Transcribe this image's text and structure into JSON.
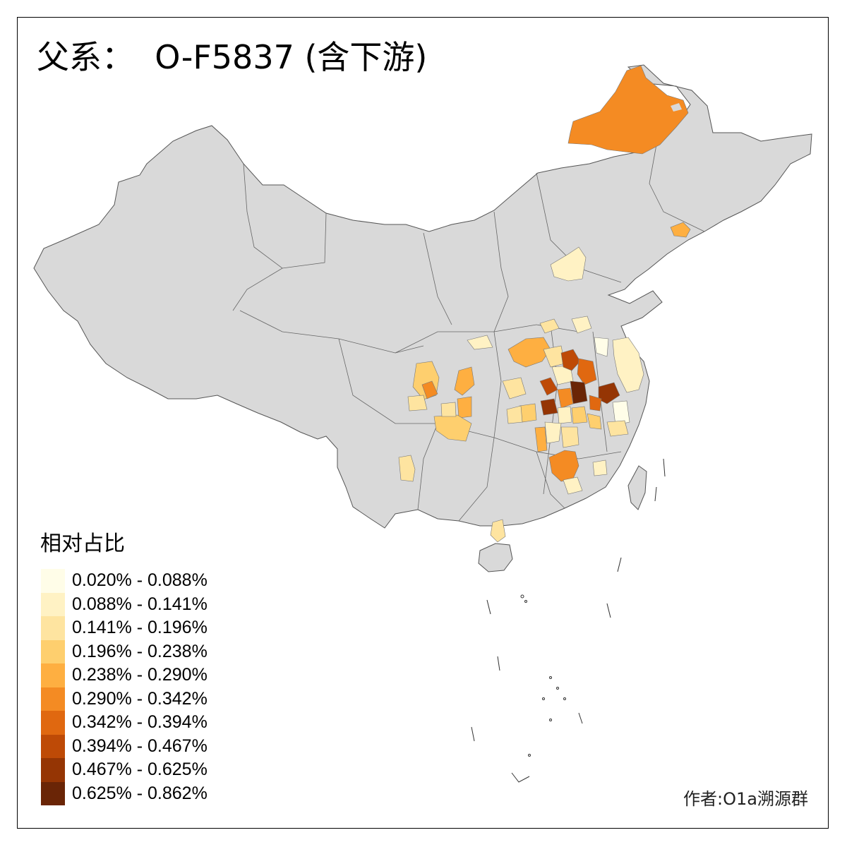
{
  "title": "父系：  O-F5837 (含下游)",
  "legend": {
    "title": "相对占比",
    "items": [
      {
        "label": "0.020% - 0.088%",
        "color": "#fffde8"
      },
      {
        "label": "0.088% - 0.141%",
        "color": "#fff2c4"
      },
      {
        "label": "0.141% - 0.196%",
        "color": "#fee4a0"
      },
      {
        "label": "0.196% - 0.238%",
        "color": "#fecf6e"
      },
      {
        "label": "0.238% - 0.290%",
        "color": "#feaf41"
      },
      {
        "label": "0.290% - 0.342%",
        "color": "#f48b23"
      },
      {
        "label": "0.342% - 0.394%",
        "color": "#e06810"
      },
      {
        "label": "0.394% - 0.467%",
        "color": "#be4a06"
      },
      {
        "label": "0.467% - 0.625%",
        "color": "#953504"
      },
      {
        "label": "0.625% - 0.862%",
        "color": "#6a2506"
      }
    ]
  },
  "credit": "作者:O1a溯源群",
  "colors": {
    "land": "#d9d9d9",
    "border": "#555555",
    "frame": "#000000"
  }
}
